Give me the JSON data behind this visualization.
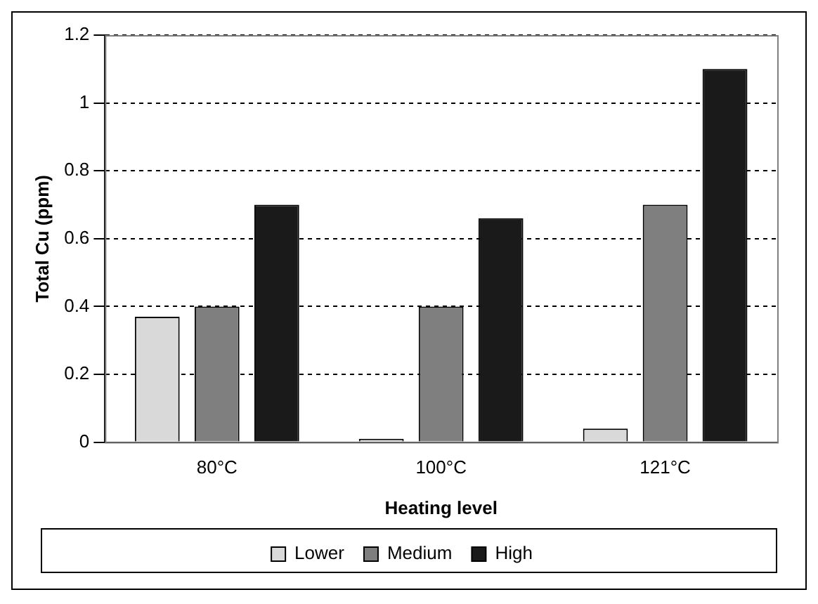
{
  "chart_data": {
    "type": "bar",
    "xlabel": "Heating level",
    "ylabel": "Total Cu (ppm)",
    "categories": [
      "80°C",
      "100°C",
      "121°C"
    ],
    "series": [
      {
        "name": "Lower",
        "color": "#d9d9d9",
        "values": [
          0.37,
          0.01,
          0.04
        ]
      },
      {
        "name": "Medium",
        "color": "#7f7f7f",
        "values": [
          0.4,
          0.4,
          0.7
        ]
      },
      {
        "name": "High",
        "color": "#1a1a1a",
        "values": [
          0.7,
          0.66,
          1.1
        ]
      }
    ],
    "ylim": [
      0,
      1.2
    ],
    "yticks": [
      0,
      0.2,
      0.4,
      0.6,
      0.8,
      1,
      1.2
    ],
    "grid": "y",
    "legend": "bottom"
  }
}
